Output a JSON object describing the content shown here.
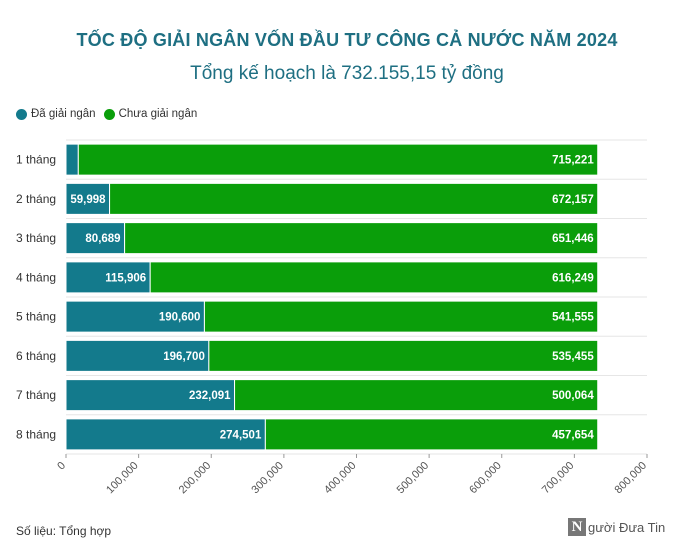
{
  "chart_data": {
    "type": "bar",
    "orientation": "horizontal",
    "stacked": true,
    "title": "TỐC ĐỘ GIẢI NGÂN VỐN ĐẦU TƯ CÔNG CẢ NƯỚC NĂM 2024",
    "subtitle": "Tổng kế hoạch là 732.155,15 tỷ đồng",
    "categories": [
      "1 tháng",
      "2 tháng",
      "3 tháng",
      "4 tháng",
      "5 tháng",
      "6 tháng",
      "7 tháng",
      "8 tháng"
    ],
    "series": [
      {
        "name": "Đã giải ngân",
        "color": "#137a8c",
        "values": [
          16934,
          59998,
          80689,
          115906,
          190600,
          196700,
          232091,
          274501
        ],
        "labels": [
          "",
          "59,998",
          "80,689",
          "115,906",
          "190,600",
          "196,700",
          "232,091",
          "274,501"
        ]
      },
      {
        "name": "Chưa giải ngân",
        "color": "#0a9e0a",
        "values": [
          715221,
          672157,
          651446,
          616249,
          541555,
          535455,
          500064,
          457654
        ],
        "labels": [
          "715,221",
          "672,157",
          "651,446",
          "616,249",
          "541,555",
          "535,455",
          "500,064",
          "457,654"
        ]
      }
    ],
    "xlim": [
      0,
      800000
    ],
    "xticks": [
      "0",
      "100,000",
      "200,000",
      "300,000",
      "400,000",
      "500,000",
      "600,000",
      "700,000",
      "800,000"
    ],
    "grid": true,
    "legend_position": "top-left"
  },
  "footer": {
    "source": "Số liệu: Tổng hợp",
    "logo_letter": "N",
    "logo_text": "gười Đưa Tin"
  }
}
